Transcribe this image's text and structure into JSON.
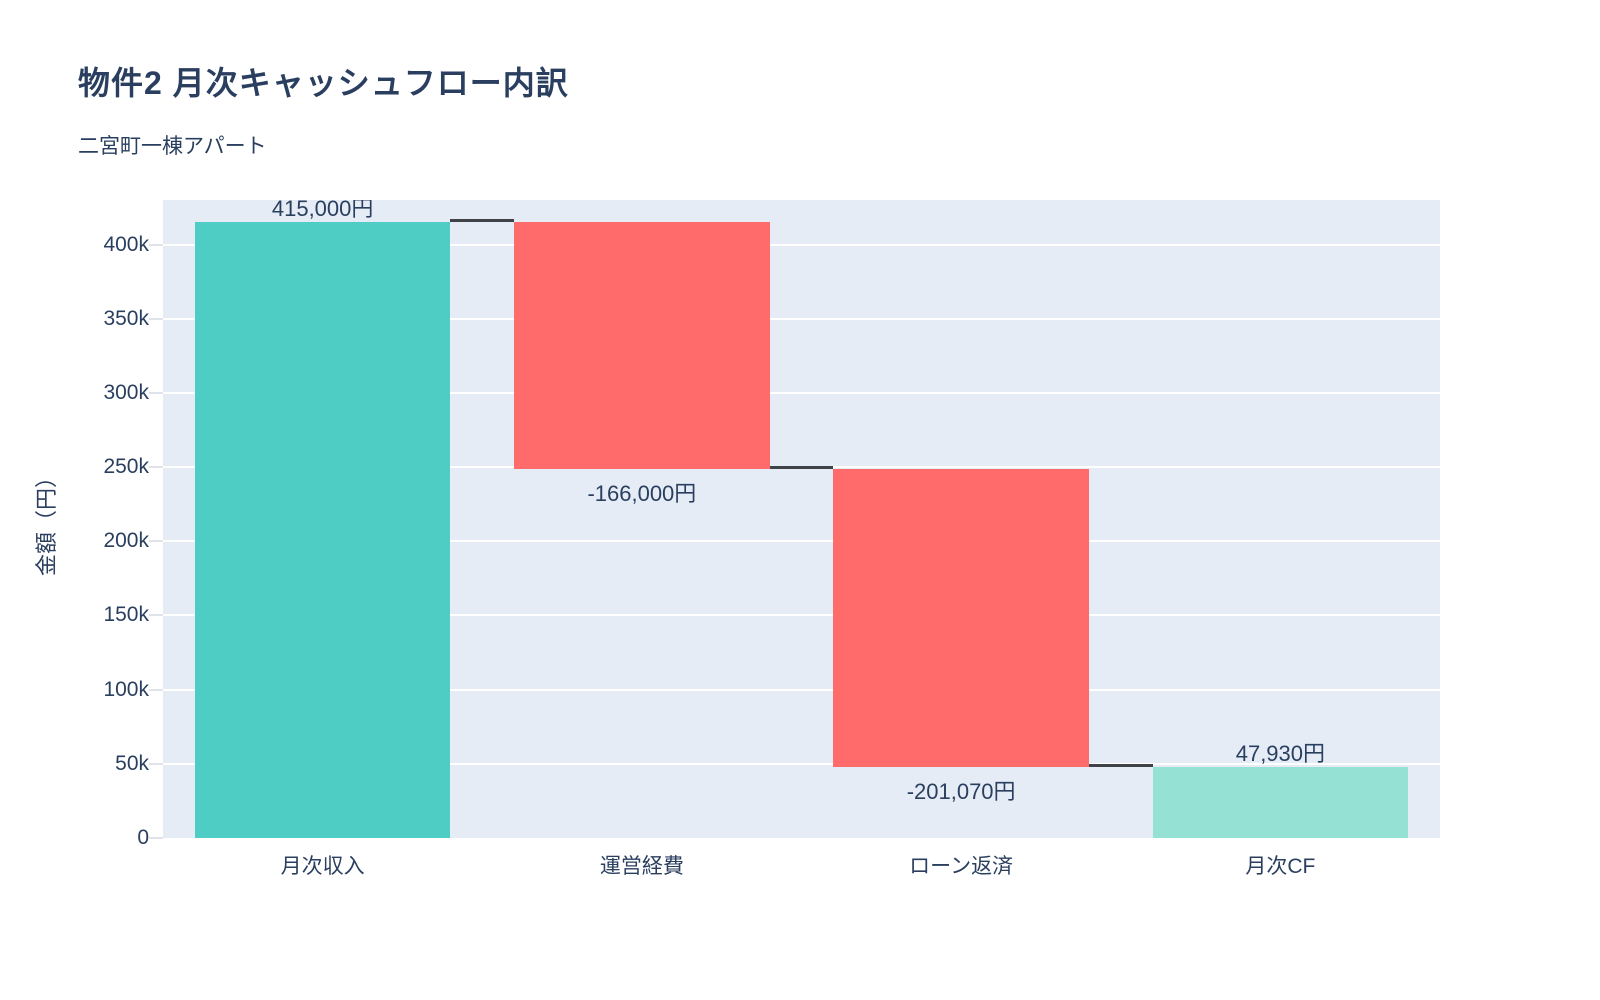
{
  "header": {
    "title": "物件2 月次キャッシュフロー内訳",
    "subtitle": "二宮町一棟アパート"
  },
  "chart_data": {
    "type": "bar",
    "subtype": "waterfall",
    "title": "物件2 月次キャッシュフロー内訳",
    "subtitle": "二宮町一棟アパート",
    "xlabel": "",
    "ylabel": "金額（円）",
    "categories": [
      "月次収入",
      "運営経費",
      "ローン返済",
      "月次CF"
    ],
    "measures": [
      "relative",
      "relative",
      "relative",
      "total"
    ],
    "values": [
      415000,
      -166000,
      -201070,
      47930
    ],
    "bar_labels": [
      "415,000円",
      "-166,000円",
      "-201,070円",
      "47,930円"
    ],
    "label_positions": [
      "above",
      "below",
      "below",
      "above"
    ],
    "ylim": [
      0,
      430000
    ],
    "ytick_step": 50000,
    "ytick_labels": [
      "0",
      "50k",
      "100k",
      "150k",
      "200k",
      "250k",
      "300k",
      "350k",
      "400k"
    ],
    "grid": true,
    "legend_position": "none",
    "colors": {
      "increasing": "#4ECDC4",
      "decreasing": "#FF6B6B",
      "total": "#95E1D3",
      "connector": "#3f4246",
      "plot_background": "#E5ECF6",
      "gridline": "#FFFFFF",
      "tick_mark": "#dfe3eb",
      "text": "#2a3f5f"
    }
  }
}
